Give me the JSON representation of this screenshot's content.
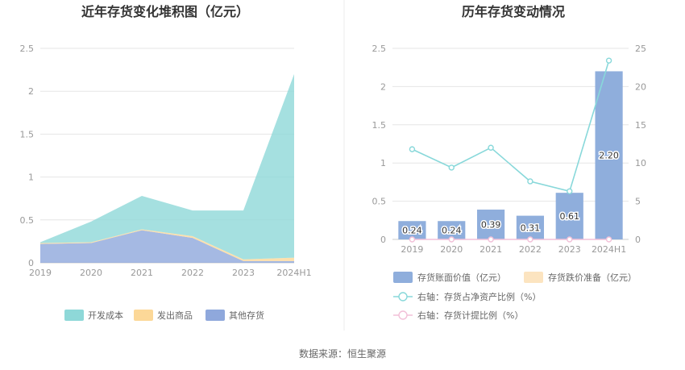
{
  "source_label": "数据来源：恒生聚源",
  "chart_data": [
    {
      "type": "area",
      "stacked": true,
      "title": "近年存货变化堆积图（亿元）",
      "categories": [
        "2019",
        "2020",
        "2021",
        "2022",
        "2023",
        "2024H1"
      ],
      "ylim": [
        0,
        2.5
      ],
      "yticks": [
        "0",
        "0.5",
        "1",
        "1.5",
        "2",
        "2.5"
      ],
      "grid": true,
      "legend_position": "bottom",
      "series": [
        {
          "name": "其他存货",
          "color": "#8FA8DC",
          "values": [
            0.22,
            0.23,
            0.38,
            0.29,
            0.02,
            0.02
          ]
        },
        {
          "name": "发出商品",
          "color": "#FCD898",
          "values": [
            0.01,
            0.01,
            0.01,
            0.02,
            0.02,
            0.04
          ]
        },
        {
          "name": "开发成本",
          "color": "#8ED8D8",
          "values": [
            0.01,
            0.24,
            0.39,
            0.3,
            0.57,
            2.14
          ]
        }
      ]
    },
    {
      "type": "bar",
      "title": "历年存货变动情况",
      "categories": [
        "2019",
        "2020",
        "2021",
        "2022",
        "2023",
        "2024H1"
      ],
      "ylim": [
        0,
        2.5
      ],
      "yticks": [
        "0",
        "0.5",
        "1",
        "1.5",
        "2",
        "2.5"
      ],
      "y2lim": [
        0,
        25
      ],
      "y2ticks": [
        "0",
        "5",
        "10",
        "15",
        "20",
        "25"
      ],
      "grid": true,
      "legend_position": "bottom",
      "series": [
        {
          "name": "存货账面价值（亿元）",
          "kind": "bar",
          "axis": "left",
          "color": "#8FAEDC",
          "values": [
            0.24,
            0.24,
            0.39,
            0.31,
            0.61,
            2.2
          ],
          "labels": [
            "0.24",
            "0.24",
            "0.39",
            "0.31",
            "0.61",
            "2.20"
          ]
        },
        {
          "name": "存货跌价准备（亿元）",
          "kind": "bar",
          "axis": "left",
          "color": "#FCE4C0",
          "values": [
            0,
            0,
            0,
            0,
            0,
            0
          ]
        },
        {
          "name": "右轴：存货占净资产比例（%）",
          "kind": "line",
          "axis": "right",
          "color": "#88D8DA",
          "values": [
            11.8,
            9.4,
            12.0,
            7.6,
            6.3,
            23.4
          ]
        },
        {
          "name": "右轴：存货计提比例（%）",
          "kind": "line",
          "axis": "right",
          "color": "#F2C0D8",
          "values": [
            0,
            0,
            0,
            0,
            0,
            0
          ]
        }
      ]
    }
  ]
}
